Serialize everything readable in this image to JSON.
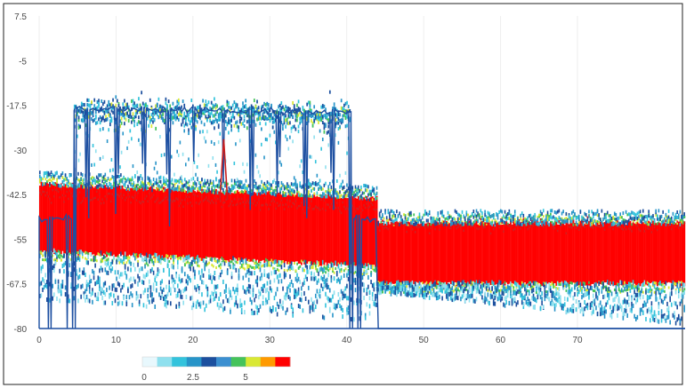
{
  "chart_data": {
    "type": "heatmap",
    "title": "",
    "xlabel": "",
    "ylabel": "",
    "xlim": [
      0,
      84
    ],
    "ylim": [
      -80,
      7.5
    ],
    "x_ticks": [
      "0",
      "10",
      "20",
      "30",
      "40",
      "50",
      "60",
      "70"
    ],
    "y_ticks": [
      "7.5",
      "-5",
      "-17.5",
      "-30",
      "-42.5",
      "-55",
      "-67.5",
      "-80"
    ],
    "colorbar": {
      "labels": [
        "0",
        "2.5",
        "5"
      ],
      "colors": [
        "#e8f8fd",
        "#8fe0ee",
        "#33c3dc",
        "#2794c8",
        "#1c4f9e",
        "#3b8fd0",
        "#45c35a",
        "#d9e834",
        "#ff9a00",
        "#ff0000"
      ]
    },
    "series": [
      {
        "segments": [
          {
            "x": [
              0,
              44
            ],
            "density_center_start": -49,
            "density_center_end": -53,
            "density_halfwidth": 9,
            "peak_envelope_start": -42.5,
            "peak_envelope_end": -46,
            "spread_low_start": -72,
            "spread_low_end": -78
          },
          {
            "x": [
              44,
              84
            ],
            "density_center_start": -59,
            "density_center_end": -59,
            "density_halfwidth": 8,
            "peak_envelope_start": -51,
            "peak_envelope_end": -51,
            "spread_low_start": -70,
            "spread_low_end": -79
          }
        ]
      },
      {
        "signal_band": {
          "x": [
            4.5,
            40.5
          ],
          "center_start": -19.5,
          "center_end": -20.5,
          "halfwidth": 4.5
        },
        "dips_x": [
          1.2,
          3.5,
          4.5,
          6,
          10,
          13.5,
          16.5,
          20,
          23.8,
          27.5,
          31,
          34.5,
          38,
          40.5,
          41.5
        ],
        "spike": {
          "x": 24,
          "peak": -27
        }
      }
    ]
  }
}
